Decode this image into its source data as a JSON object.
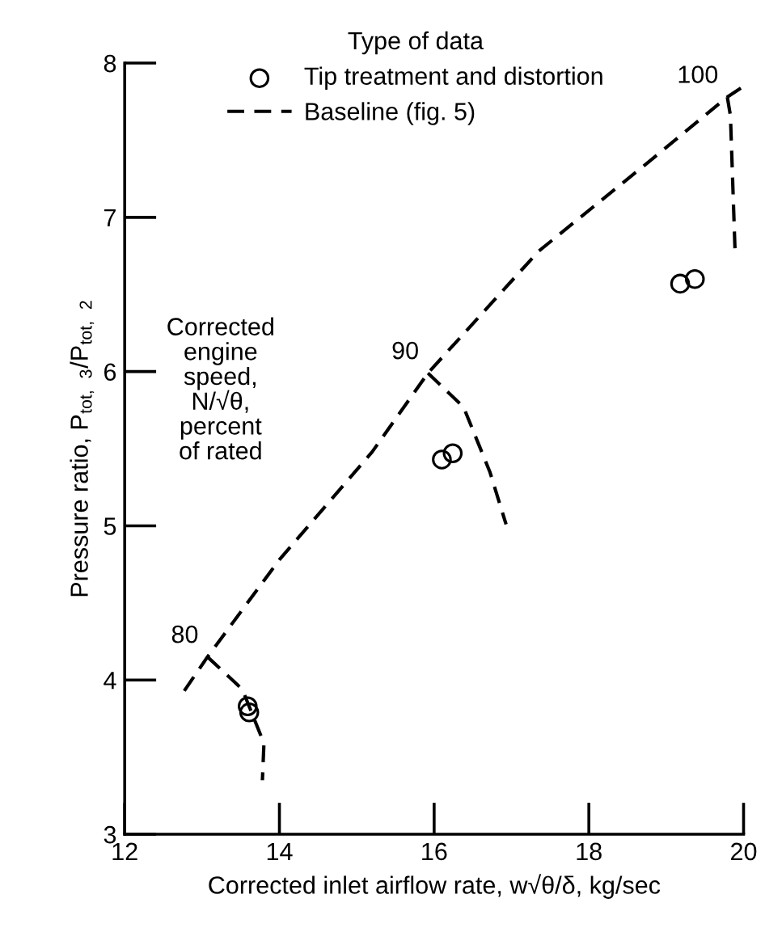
{
  "chart_data": {
    "type": "line",
    "xlabel": "Corrected inlet airflow rate, w√θ/δ, kg/sec",
    "ylabel": "Pressure ratio, P$_{tot,}$ $_{3}$/P$_{tot,}$ $_{2}$",
    "legend_title": "Type of data",
    "xlim": [
      12,
      20
    ],
    "ylim": [
      3,
      8
    ],
    "xticks": [
      12,
      14,
      16,
      18,
      20
    ],
    "yticks": [
      3,
      4,
      5,
      6,
      7,
      8
    ],
    "grid": false,
    "legend": "top",
    "series": [
      {
        "name": "Tip treatment and distortion",
        "type": "scatter",
        "marker": "circle",
        "color": "#000000",
        "x": [
          13.59,
          13.61,
          16.1,
          16.24,
          19.18,
          19.37
        ],
        "values": [
          3.83,
          3.79,
          5.43,
          5.47,
          6.57,
          6.6
        ]
      },
      {
        "name": "Baseline (fig. 5)",
        "line_style": "dashed",
        "color": "#000000",
        "x": [
          12.77,
          13.07,
          14.0,
          15.2,
          15.92,
          17.35,
          18.75,
          19.79,
          20.0
        ],
        "values": [
          3.93,
          4.15,
          4.78,
          5.48,
          5.99,
          6.78,
          7.35,
          7.78,
          7.85
        ]
      },
      {
        "line_style": "dashed",
        "color": "#000000",
        "x": [
          13.07,
          13.52,
          13.8,
          13.78
        ],
        "values": [
          4.15,
          3.94,
          3.59,
          3.35
        ]
      },
      {
        "line_style": "dashed",
        "color": "#000000",
        "x": [
          15.92,
          16.38,
          16.72,
          16.93
        ],
        "values": [
          5.99,
          5.77,
          5.35,
          5.01
        ]
      },
      {
        "line_style": "dashed",
        "color": "#000000",
        "x": [
          19.79,
          19.83,
          19.89
        ],
        "values": [
          7.78,
          7.66,
          6.78
        ]
      }
    ],
    "annotations": [
      {
        "text": "80",
        "x": 13.07,
        "y": 4.15
      },
      {
        "text": "90",
        "x": 15.92,
        "y": 5.99
      },
      {
        "text": "100",
        "x": 19.79,
        "y": 7.78
      },
      "Corrected\nengine\nspeed,\nN/√θ,\npercent\nof rated"
    ]
  }
}
